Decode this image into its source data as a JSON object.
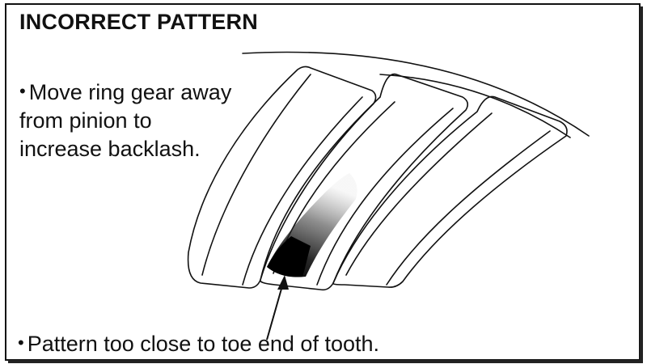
{
  "title": "INCORRECT PATTERN",
  "bullet_glyph": "•",
  "notes": [
    "Move ring gear away from pinion to increase backlash.",
    "Pattern too close to toe end of tooth."
  ],
  "colors": {
    "ink": "#111111",
    "background": "#ffffff"
  }
}
